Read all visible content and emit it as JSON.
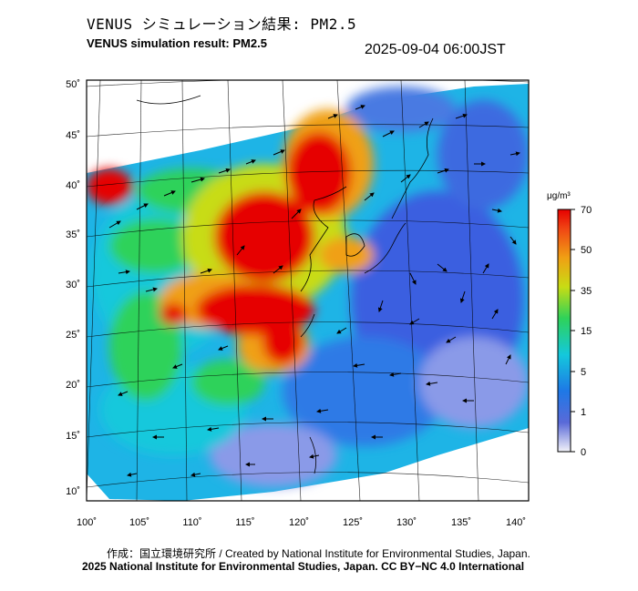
{
  "header": {
    "title_jp": "VENUS シミュレーション結果: PM2.5",
    "title_en": "VENUS simulation result: PM2.5",
    "datetime": "2025-09-04 06:00JST"
  },
  "map": {
    "lat_labels": [
      "50˚",
      "45˚",
      "40˚",
      "35˚",
      "30˚",
      "25˚",
      "20˚",
      "15˚",
      "10˚"
    ],
    "lon_labels": [
      "100˚",
      "105˚",
      "110˚",
      "115˚",
      "120˚",
      "125˚",
      "130˚",
      "135˚",
      "140˚"
    ]
  },
  "colorbar": {
    "unit": "μg/m³",
    "ticks": [
      "70",
      "50",
      "35",
      "15",
      "5",
      "1",
      "0"
    ],
    "colors": [
      "#e6e6f2",
      "#5060d8",
      "#1e78e6",
      "#14c8dc",
      "#2ed25a",
      "#c8dc14",
      "#f0a014",
      "#f04614",
      "#e60000"
    ]
  },
  "footer": {
    "credit": "作成：国立環境研究所 / Created by National Institute for Environmental Studies, Japan.",
    "copyright": "2025 National Institute for Environmental Studies, Japan. CC BY−NC 4.0 International"
  }
}
